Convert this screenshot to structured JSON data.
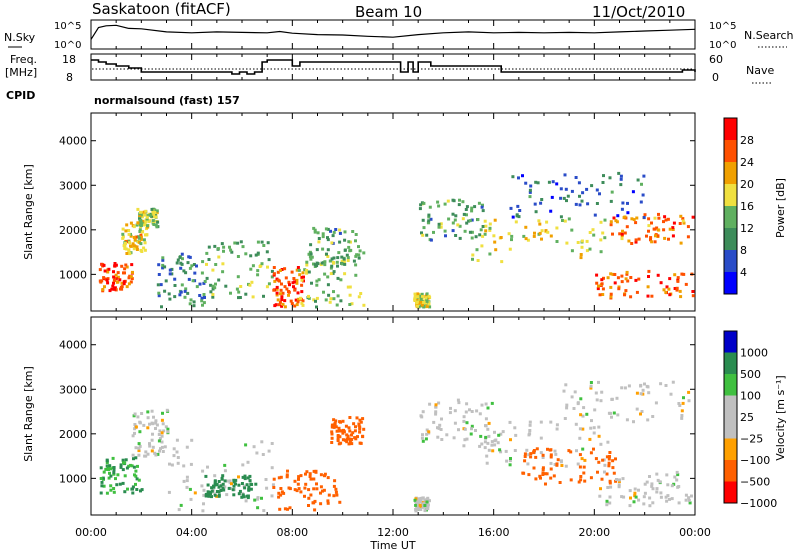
{
  "header": {
    "station": "Saskatoon (fitACF)",
    "beam": "Beam 10",
    "date": "11/Oct/2010"
  },
  "nsky_panel": {
    "left_label": "N.Sky",
    "left_ticks": [
      "10^5",
      "10^0"
    ],
    "right_label": "N.Search",
    "right_ticks": [
      "10^5",
      "10^0"
    ]
  },
  "freq_panel": {
    "left_label_line1": "Freq.",
    "left_label_line2": "[MHz]",
    "left_ticks": [
      18,
      8
    ],
    "right_label": "Nave",
    "right_ticks": [
      60,
      0
    ]
  },
  "cpid": {
    "label": "CPID",
    "program": "normalsound (fast) 157"
  },
  "x_axis": {
    "label": "Time UT",
    "ticks": [
      "00:00",
      "04:00",
      "08:00",
      "12:00",
      "16:00",
      "20:00",
      "00:00"
    ],
    "range_hours": [
      0,
      24
    ]
  },
  "colors": {
    "power_scale": [
      "#0000ff",
      "#2a4cc8",
      "#3d8c5a",
      "#60b060",
      "#f0e040",
      "#f0a000",
      "#ff5000",
      "#ff0000"
    ],
    "velocity_scale": [
      "#ff0000",
      "#ff6000",
      "#ffa000",
      "#c0c0c0",
      "#c0c0c0",
      "#40c040",
      "#2a8c50",
      "#0000c8"
    ]
  },
  "power_panel": {
    "ylabel": "Slant Range [km]",
    "yticks": [
      1000,
      2000,
      3000,
      4000
    ],
    "ylim": [
      200,
      4600
    ],
    "colorbar_label": "Power [dB]",
    "colorbar_ticks": [
      4,
      8,
      12,
      16,
      20,
      24,
      28
    ]
  },
  "velocity_panel": {
    "ylabel": "Slant Range [km]",
    "yticks": [
      1000,
      2000,
      3000,
      4000
    ],
    "ylim": [
      200,
      4600
    ],
    "colorbar_label": "Velocity [m s⁻¹]",
    "colorbar_ticks": [
      "1000",
      "500",
      "100",
      "25",
      "−25",
      "−100",
      "−500",
      "−1000"
    ]
  },
  "chart_data": [
    {
      "type": "line",
      "name": "nsky",
      "x": [
        0,
        0.3,
        0.6,
        1.0,
        1.5,
        2.0,
        3.0,
        4.0,
        5.0,
        6.0,
        7.0,
        7.5,
        8.0,
        9.0,
        10.0,
        11.0,
        12.0,
        13.0,
        14.0,
        15.0,
        16.0,
        17.0,
        18.0,
        19.0,
        20.0,
        21.0,
        22.0,
        23.0,
        24.0
      ],
      "y_log10": [
        1.5,
        4.2,
        4.6,
        4.7,
        4.0,
        3.9,
        3.2,
        3.0,
        3.2,
        3.1,
        3.0,
        3.3,
        2.9,
        2.6,
        2.5,
        2.2,
        2.0,
        2.6,
        3.0,
        3.2,
        3.0,
        3.1,
        3.0,
        3.1,
        3.0,
        3.2,
        3.4,
        3.6,
        3.8
      ]
    },
    {
      "type": "line",
      "name": "frequency_mhz",
      "x": [
        0,
        0.3,
        0.6,
        1.0,
        1.5,
        2.0,
        4.0,
        5.0,
        5.6,
        5.9,
        6.2,
        6.5,
        6.8,
        7.0,
        7.5,
        8.0,
        8.3,
        9.0,
        12.0,
        12.3,
        12.6,
        12.8,
        13.0,
        13.5,
        16.0,
        16.3,
        22.8,
        23.5,
        24.0
      ],
      "y": [
        17,
        16,
        15,
        14,
        13,
        11,
        11,
        11,
        10,
        11,
        10,
        11,
        16,
        17,
        17,
        14,
        16,
        16,
        16,
        11,
        16,
        11,
        16,
        14,
        14,
        11,
        11,
        12,
        11
      ]
    },
    {
      "type": "heatmap",
      "name": "power_db",
      "units": "dB",
      "x_hours": [
        0,
        24
      ],
      "y_km": [
        200,
        4600
      ],
      "regions": [
        {
          "t": [
            0.3,
            1.6
          ],
          "r": [
            650,
            1300
          ],
          "v": 27
        },
        {
          "t": [
            1.2,
            2.2
          ],
          "r": [
            1500,
            2200
          ],
          "v": 20
        },
        {
          "t": [
            1.8,
            2.6
          ],
          "r": [
            2100,
            2500
          ],
          "v": 16
        },
        {
          "t": [
            2.6,
            4.5
          ],
          "r": [
            300,
            1500
          ],
          "v": 10
        },
        {
          "t": [
            4.5,
            7.2
          ],
          "r": [
            500,
            1800
          ],
          "v": 13
        },
        {
          "t": [
            7.2,
            8.4
          ],
          "r": [
            300,
            1200
          ],
          "v": 27
        },
        {
          "t": [
            8.2,
            10.8
          ],
          "r": [
            300,
            1600
          ],
          "v": 15
        },
        {
          "t": [
            8.6,
            10.6
          ],
          "r": [
            1200,
            2100
          ],
          "v": 12
        },
        {
          "t": [
            12.8,
            13.4
          ],
          "r": [
            300,
            600
          ],
          "v": 18
        },
        {
          "t": [
            13.0,
            15.6
          ],
          "r": [
            1800,
            2700
          ],
          "v": 12
        },
        {
          "t": [
            15.0,
            20.5
          ],
          "r": [
            1300,
            2300
          ],
          "v": 18
        },
        {
          "t": [
            20.0,
            24.0
          ],
          "r": [
            500,
            1100
          ],
          "v": 26
        },
        {
          "t": [
            20.5,
            24.0
          ],
          "r": [
            1700,
            2400
          ],
          "v": 24
        },
        {
          "t": [
            16.5,
            22.0
          ],
          "r": [
            2300,
            3300
          ],
          "v": 8
        }
      ]
    },
    {
      "type": "heatmap",
      "name": "velocity_ms",
      "units": "m s^-1",
      "x_hours": [
        0,
        24
      ],
      "y_km": [
        200,
        4600
      ],
      "regions": [
        {
          "t": [
            0.3,
            2.0
          ],
          "r": [
            700,
            1500
          ],
          "v": 100
        },
        {
          "t": [
            1.6,
            3.0
          ],
          "r": [
            1500,
            2600
          ],
          "v": 0
        },
        {
          "t": [
            3.0,
            7.2
          ],
          "r": [
            300,
            1900
          ],
          "v": 0
        },
        {
          "t": [
            4.5,
            6.5
          ],
          "r": [
            600,
            1100
          ],
          "v": 300
        },
        {
          "t": [
            7.2,
            10.0
          ],
          "r": [
            300,
            1200
          ],
          "v": -150
        },
        {
          "t": [
            9.5,
            10.8
          ],
          "r": [
            1800,
            2400
          ],
          "v": -200
        },
        {
          "t": [
            12.8,
            13.4
          ],
          "r": [
            300,
            600
          ],
          "v": 0
        },
        {
          "t": [
            13.0,
            16.0
          ],
          "r": [
            1700,
            2800
          ],
          "v": 0
        },
        {
          "t": [
            15.5,
            20.5
          ],
          "r": [
            1300,
            2300
          ],
          "v": 0
        },
        {
          "t": [
            17.0,
            21.0
          ],
          "r": [
            900,
            1700
          ],
          "v": -250
        },
        {
          "t": [
            20.0,
            24.0
          ],
          "r": [
            400,
            1200
          ],
          "v": 0
        },
        {
          "t": [
            18.5,
            24.0
          ],
          "r": [
            2300,
            3200
          ],
          "v": 0
        }
      ]
    }
  ]
}
